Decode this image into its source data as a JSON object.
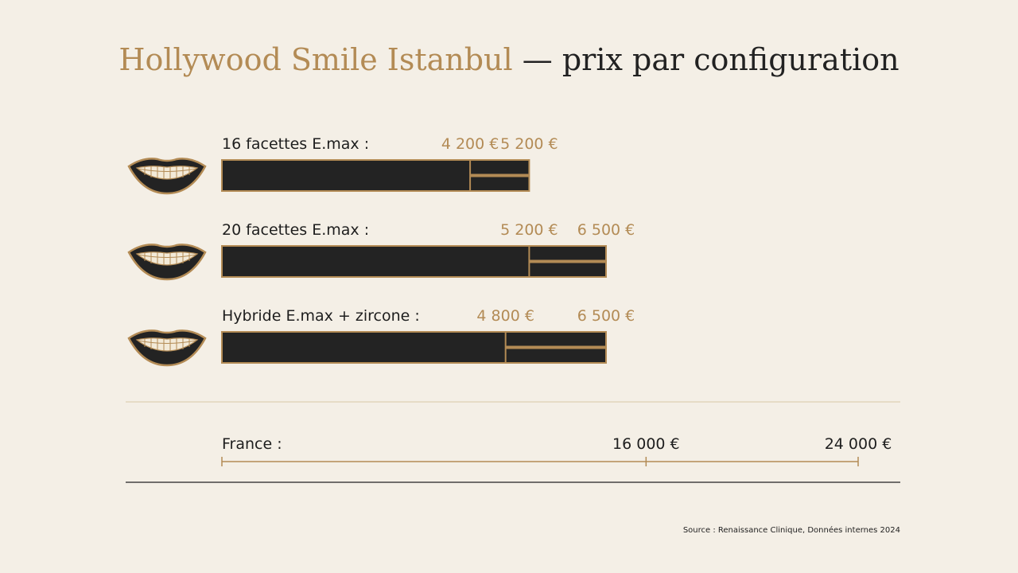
{
  "title": "Hollywood Smile Istanbul",
  "title_suffix": "— prix par configuration",
  "chart_data": {
    "type": "range-bar",
    "categories": [
      "16 facettes E.max :",
      "20 facettes E.max :",
      "Hybride E.max + zircone :"
    ],
    "low": [
      4200,
      5200,
      4800
    ],
    "high": [
      5200,
      6500,
      6500
    ],
    "low_labels": [
      "4 200 €",
      "5 200 €",
      "4 800 €"
    ],
    "high_labels": [
      "5 200 €",
      "6 500 €",
      "6 500 €"
    ],
    "color": "#b38b55",
    "bar_color": "#232323",
    "reference": {
      "label": "France :",
      "low": 16000,
      "high": 24000,
      "low_label": "16 000 €",
      "high_label": "24 000 €"
    }
  },
  "source": "Source : Renaissance Clinique, Données internes 2024"
}
